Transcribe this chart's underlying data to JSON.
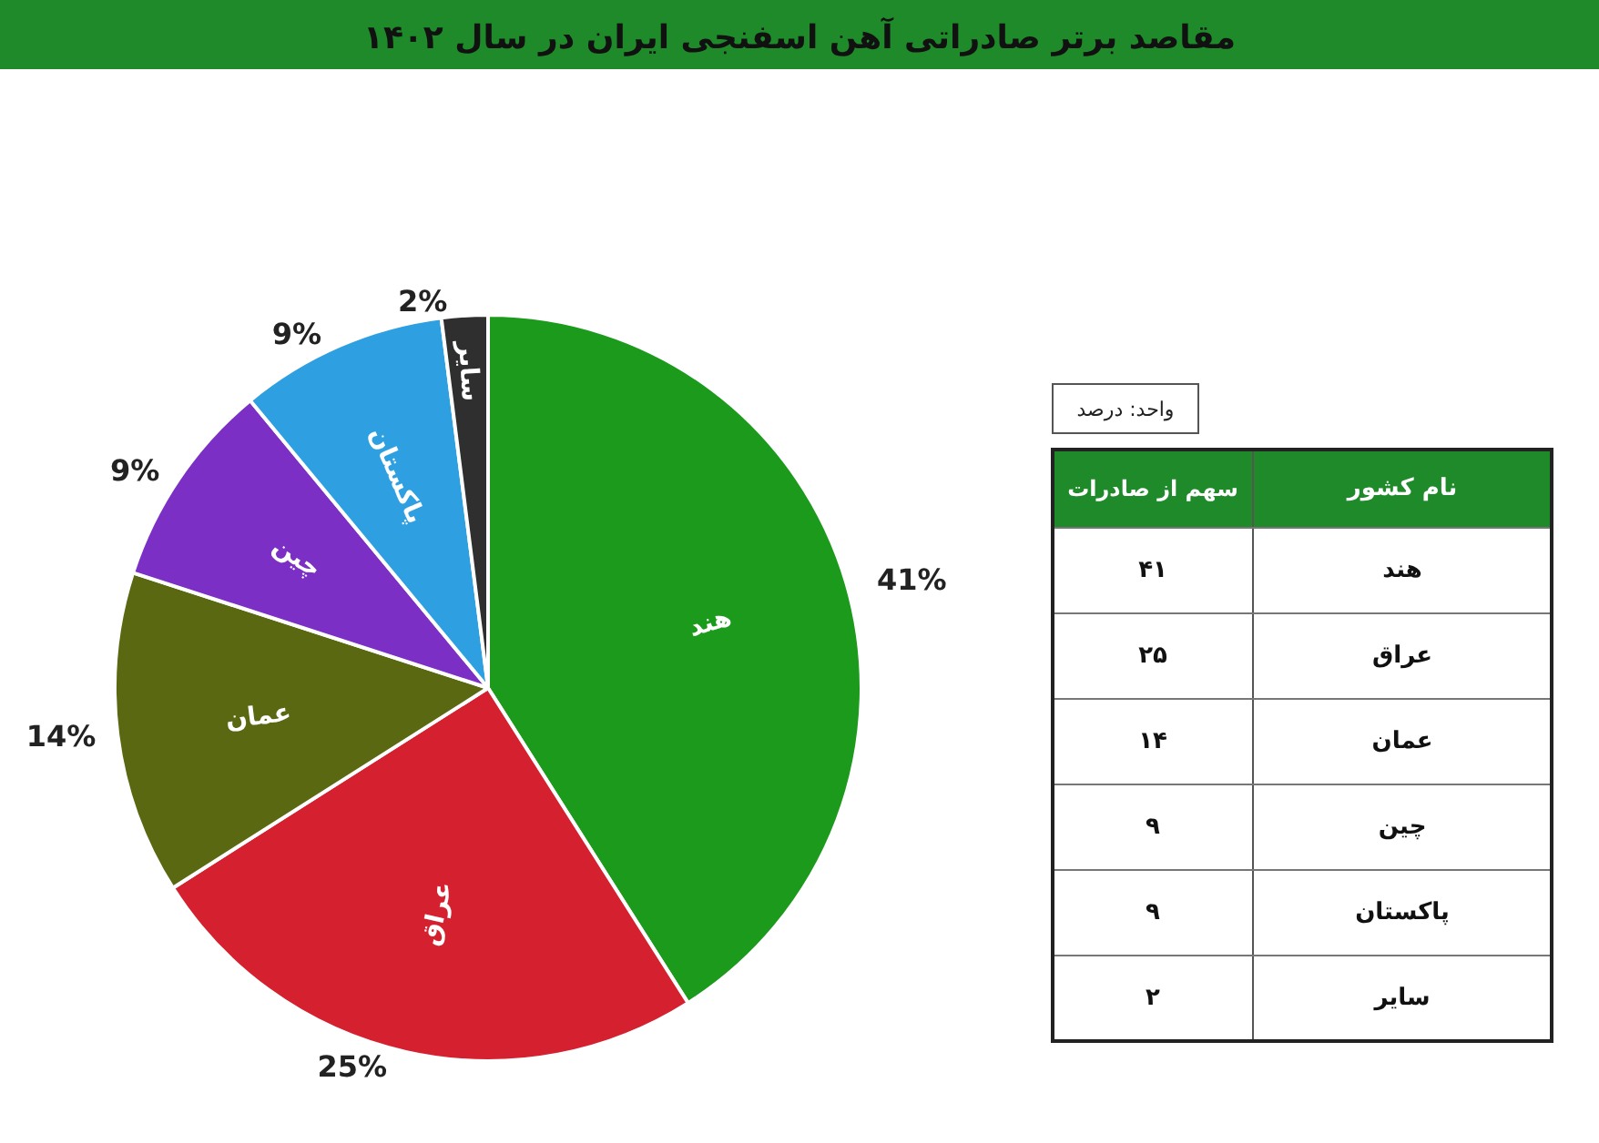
{
  "chart_data": {
    "type": "pie",
    "title": "مقاصد برتر صادراتی آهن اسفنجی ایران در سال ۱۴۰۲",
    "categories": [
      "هند",
      "عراق",
      "عمان",
      "چین",
      "پاکستان",
      "سایر"
    ],
    "values": [
      41,
      25,
      14,
      9,
      9,
      2
    ],
    "colors": [
      "#1b9a1b",
      "#d4202f",
      "#5b6812",
      "#7b2fc4",
      "#2e9fe0",
      "#2f2f2f"
    ],
    "value_labels": [
      "41%",
      "25%",
      "14%",
      "9%",
      "9%",
      "2%"
    ],
    "annotations": [
      "واحد: درصد",
      "نام کشور",
      "سهم از صادرات",
      "هند",
      "۴۱",
      "عراق",
      "۲۵",
      "عمان",
      "۱۴",
      "چین",
      "۹",
      "پاکستان",
      "۹",
      "سایر",
      "۲"
    ]
  }
}
